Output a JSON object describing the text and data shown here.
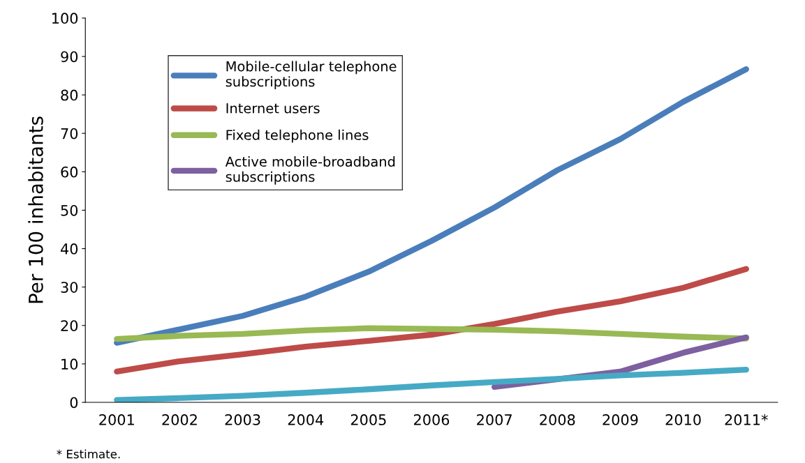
{
  "chart_data": {
    "type": "line",
    "ylabel": "Per 100 inhabitants",
    "categories": [
      "2001",
      "2002",
      "2003",
      "2004",
      "2005",
      "2006",
      "2007",
      "2008",
      "2009",
      "2010",
      "2011*"
    ],
    "series": [
      {
        "name": "Mobile-cellular telephone\nsubscriptions",
        "color": "#4a7ebb",
        "values": [
          15.5,
          19,
          22.5,
          27.5,
          34,
          42,
          50.7,
          60.4,
          68.5,
          78.2,
          86.7
        ]
      },
      {
        "name": "Internet users",
        "color": "#be4b48",
        "values": [
          8,
          10.7,
          12.5,
          14.5,
          16,
          17.6,
          20.4,
          23.6,
          26.3,
          29.8,
          34.7
        ]
      },
      {
        "name": "Fixed telephone lines",
        "color": "#98b954",
        "values": [
          16.5,
          17.3,
          17.8,
          18.7,
          19.3,
          19.1,
          18.9,
          18.5,
          17.8,
          17.1,
          16.6
        ]
      },
      {
        "name": "Active mobile-broadband\nsubscriptions",
        "color": "#7d60a0",
        "values": [
          null,
          null,
          null,
          null,
          null,
          null,
          4.0,
          6.0,
          8.0,
          12.9,
          16.9
        ]
      },
      {
        "color": "#46aac5",
        "values": [
          0.6,
          1.1,
          1.7,
          2.5,
          3.4,
          4.4,
          5.3,
          6.1,
          7.0,
          7.7,
          8.5
        ]
      }
    ],
    "ylim": [
      0,
      100
    ],
    "yticks": [
      0,
      10,
      20,
      30,
      40,
      50,
      60,
      70,
      80,
      90,
      100
    ],
    "grid": false,
    "legend": "top left",
    "marker": "none",
    "line_style": "solid",
    "annotations": [
      "* Estimate."
    ]
  }
}
